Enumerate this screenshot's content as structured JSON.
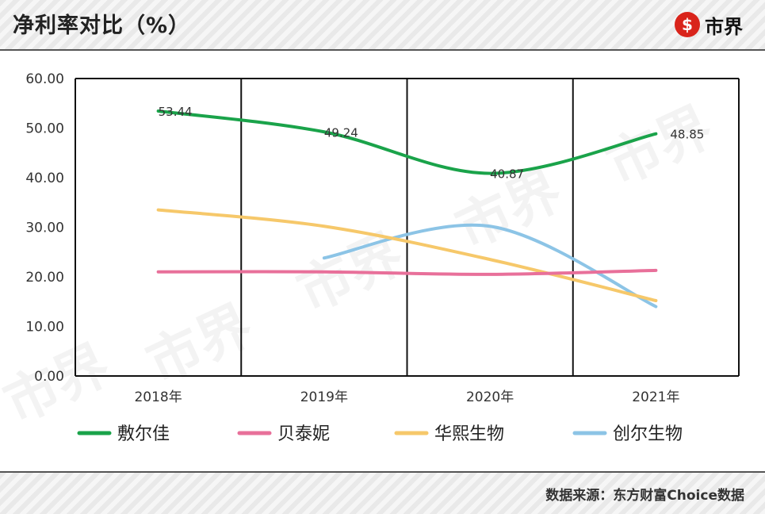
{
  "header": {
    "title": "净利率对比（%）",
    "brand": "市界",
    "brand_icon": "yuan-circle-icon",
    "brand_color": "#d9241b"
  },
  "footer": {
    "source": "数据来源：东方财富Choice数据"
  },
  "watermark": "市界",
  "chart_data": {
    "type": "line",
    "title": "净利率对比（%）",
    "categories": [
      "2018年",
      "2019年",
      "2020年",
      "2021年"
    ],
    "ylim": [
      0,
      60
    ],
    "yticks": [
      "0.00",
      "10.00",
      "20.00",
      "30.00",
      "40.00",
      "50.00",
      "60.00"
    ],
    "grid": false,
    "legend_position": "bottom",
    "series": [
      {
        "name": "敷尔佳",
        "color": "#1aa34a",
        "values": [
          53.44,
          49.24,
          40.87,
          48.85
        ],
        "labels": [
          "53.44",
          "49.24",
          "40.87",
          "48.85"
        ]
      },
      {
        "name": "贝泰妮",
        "color": "#e8709a",
        "values": [
          21.0,
          21.0,
          20.5,
          21.3
        ]
      },
      {
        "name": "华熙生物",
        "color": "#f6c86a",
        "values": [
          33.5,
          30.2,
          23.5,
          15.2
        ]
      },
      {
        "name": "创尔生物",
        "color": "#8cc4e6",
        "values": [
          null,
          23.8,
          30.2,
          14.0
        ]
      }
    ]
  }
}
